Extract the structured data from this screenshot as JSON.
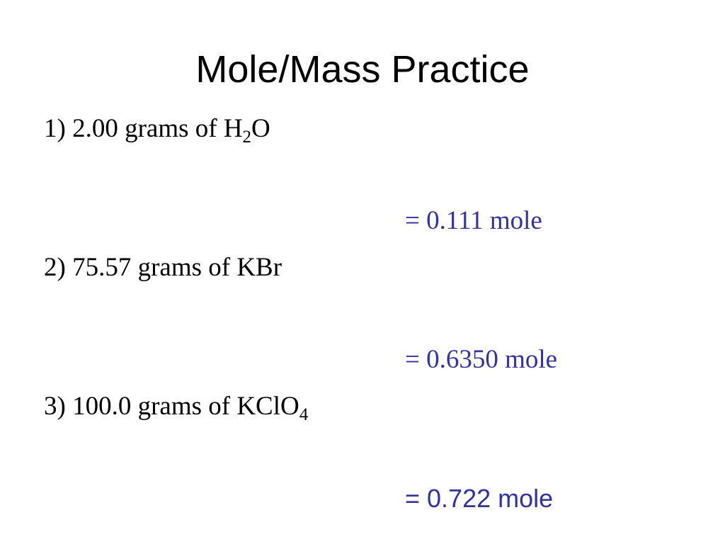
{
  "title": "Mole/Mass Practice",
  "problems": [
    {
      "question": [
        {
          "text": "1) 2.00 grams of H"
        },
        {
          "sub": "2"
        },
        {
          "text": "O"
        }
      ],
      "answer": "= 0.111 mole"
    },
    {
      "question": [
        {
          "text": "2) 75.57 grams of KBr"
        }
      ],
      "answer": "= 0.6350 mole"
    },
    {
      "question": [
        {
          "text": "3) 100.0 grams of KClO"
        },
        {
          "sub": "4"
        }
      ],
      "answer": "= 0.722 mole"
    }
  ]
}
